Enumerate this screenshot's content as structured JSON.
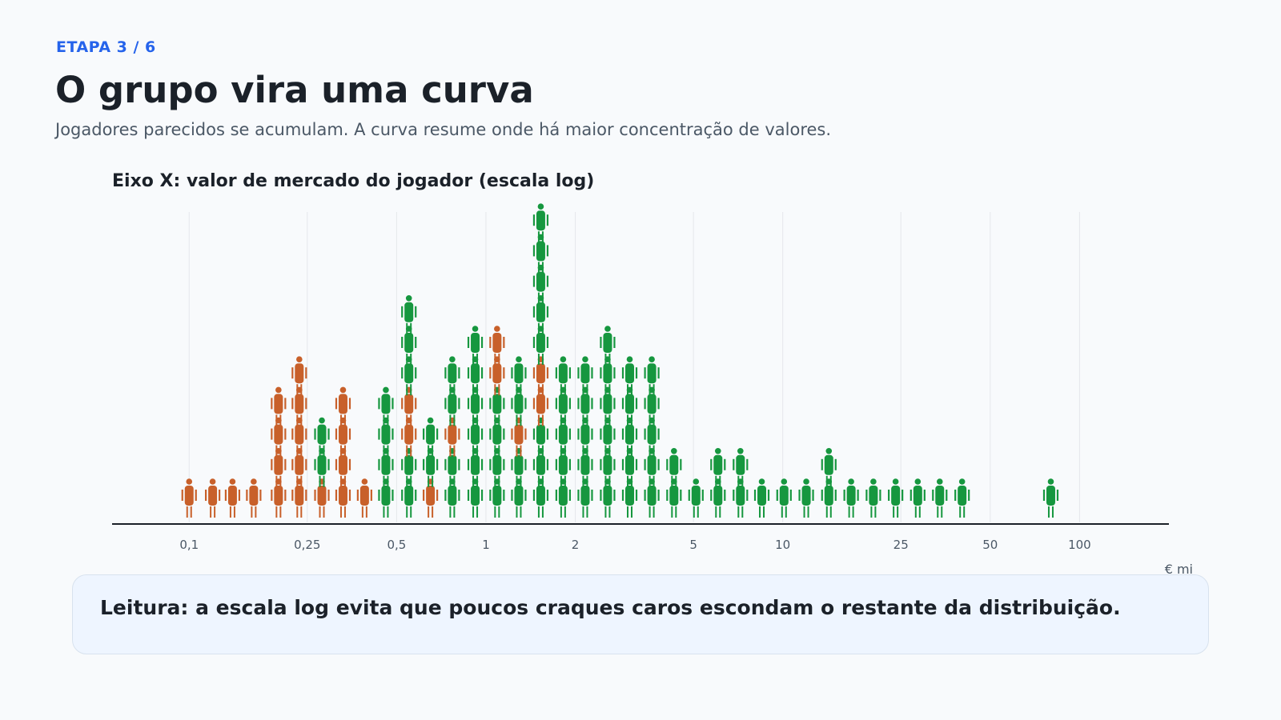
{
  "header": {
    "step": "ETAPA 3 / 6",
    "title": "O grupo vira uma curva",
    "subtitle": "Jogadores parecidos se acumulam. A curva resume onde há maior concentração de valores."
  },
  "colors": {
    "accent": "#2563eb",
    "group_a": "#c8602a",
    "group_b": "#16973f",
    "text": "#1b2129",
    "muted": "#4b5866",
    "note_bg": "#eef5ff"
  },
  "note": {
    "text": "Leitura: a escala log evita que poucos craques caros escondam o restante da distribuição."
  },
  "chart_data": {
    "type": "isotype-dotplot",
    "title": "Eixo X: valor de mercado do jogador (escala log)",
    "unit_label": "€ mi",
    "x_scale": "log",
    "xlim": [
      0.055,
      200
    ],
    "x_ticks": [
      {
        "value": 0.1,
        "label": "0,1"
      },
      {
        "value": 0.25,
        "label": "0,25"
      },
      {
        "value": 0.5,
        "label": "0,5"
      },
      {
        "value": 1,
        "label": "1"
      },
      {
        "value": 2,
        "label": "2"
      },
      {
        "value": 5,
        "label": "5"
      },
      {
        "value": 10,
        "label": "10"
      },
      {
        "value": 25,
        "label": "25"
      },
      {
        "value": 50,
        "label": "50"
      },
      {
        "value": 100,
        "label": "100"
      }
    ],
    "grid": true,
    "series_colors": {
      "a": "#c8602a",
      "b": "#16973f"
    },
    "stacks": [
      {
        "x": 0.1,
        "icons": "a"
      },
      {
        "x": 0.12,
        "icons": "a"
      },
      {
        "x": 0.14,
        "icons": "a"
      },
      {
        "x": 0.165,
        "icons": "a"
      },
      {
        "x": 0.2,
        "icons": "aaaa"
      },
      {
        "x": 0.235,
        "icons": "aaaaa"
      },
      {
        "x": 0.28,
        "icons": "abb"
      },
      {
        "x": 0.33,
        "icons": "aaaa"
      },
      {
        "x": 0.39,
        "icons": "a"
      },
      {
        "x": 0.46,
        "icons": "bbbb"
      },
      {
        "x": 0.55,
        "icons": "bbaabbb"
      },
      {
        "x": 0.65,
        "icons": "abb"
      },
      {
        "x": 0.77,
        "icons": "bbabb"
      },
      {
        "x": 0.92,
        "icons": "bbbbbb"
      },
      {
        "x": 1.09,
        "icons": "bbbbaa"
      },
      {
        "x": 1.29,
        "icons": "bbabb"
      },
      {
        "x": 1.53,
        "icons": "bbbaabbbbb"
      },
      {
        "x": 1.82,
        "icons": "bbbbb"
      },
      {
        "x": 2.16,
        "icons": "bbbbb"
      },
      {
        "x": 2.57,
        "icons": "bbbbbb"
      },
      {
        "x": 3.05,
        "icons": "bbbbb"
      },
      {
        "x": 3.62,
        "icons": "bbbbb"
      },
      {
        "x": 4.3,
        "icons": "bb"
      },
      {
        "x": 5.1,
        "icons": "b"
      },
      {
        "x": 6.05,
        "icons": "bb"
      },
      {
        "x": 7.2,
        "icons": "bb"
      },
      {
        "x": 8.5,
        "icons": "b"
      },
      {
        "x": 10.1,
        "icons": "b"
      },
      {
        "x": 12,
        "icons": "b"
      },
      {
        "x": 14.3,
        "icons": "bb"
      },
      {
        "x": 17,
        "icons": "b"
      },
      {
        "x": 20.2,
        "icons": "b"
      },
      {
        "x": 24,
        "icons": "b"
      },
      {
        "x": 28.5,
        "icons": "b"
      },
      {
        "x": 33.8,
        "icons": "b"
      },
      {
        "x": 40.2,
        "icons": "b"
      },
      {
        "x": 80,
        "icons": "b"
      }
    ]
  }
}
